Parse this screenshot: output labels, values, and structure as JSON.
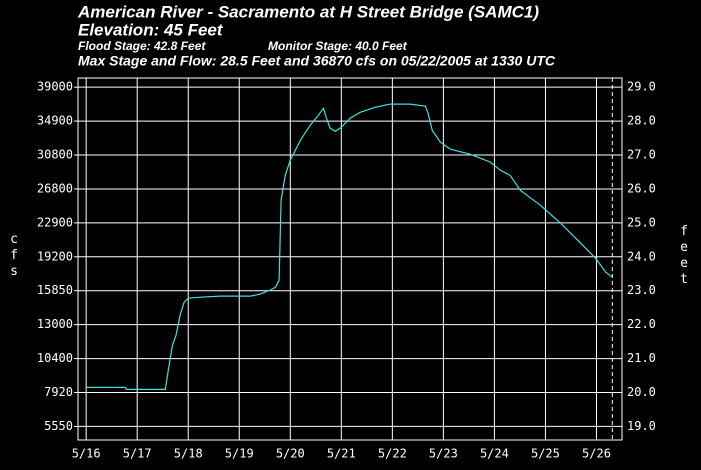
{
  "chart_data": {
    "type": "line",
    "title": "American River - Sacramento at H Street Bridge (SAMC1)",
    "subtitle": "Elevation: 45 Feet",
    "flood_stage": {
      "text": "Flood Stage: 42.8 Feet",
      "color": "#ff2020"
    },
    "monitor_stage": {
      "text": "Monitor Stage: 40.0 Feet",
      "color": "#ff9a20"
    },
    "max_note": "Max Stage and Flow: 28.5 Feet and 36870 cfs on 05/22/2005 at 1330 UTC",
    "ylabel": "cfs",
    "y2label": "feet",
    "grid": true,
    "xlim": [
      -0.16,
      10.5
    ],
    "xticks": [
      {
        "value": 0,
        "label": "5/16"
      },
      {
        "value": 1,
        "label": "5/17"
      },
      {
        "value": 2,
        "label": "5/18"
      },
      {
        "value": 3,
        "label": "5/19"
      },
      {
        "value": 4,
        "label": "5/20"
      },
      {
        "value": 5,
        "label": "5/21"
      },
      {
        "value": 6,
        "label": "5/22"
      },
      {
        "value": 7,
        "label": "5/23"
      },
      {
        "value": 8,
        "label": "5/24"
      },
      {
        "value": 9,
        "label": "5/25"
      },
      {
        "value": 10,
        "label": "5/26"
      }
    ],
    "yticks": [
      39000,
      34900,
      30800,
      26800,
      22900,
      19200,
      15850,
      13000,
      10400,
      7920,
      5550
    ],
    "y2lim": [
      18.6,
      29.27
    ],
    "y2ticks": [
      {
        "value": 29,
        "label": "29.0"
      },
      {
        "value": 28,
        "label": "28.0"
      },
      {
        "value": 27,
        "label": "27.0"
      },
      {
        "value": 26,
        "label": "26.0"
      },
      {
        "value": 25,
        "label": "25.0"
      },
      {
        "value": 24,
        "label": "24.0"
      },
      {
        "value": 23,
        "label": "23.0"
      },
      {
        "value": 22,
        "label": "22.0"
      },
      {
        "value": 21,
        "label": "21.0"
      },
      {
        "value": 20,
        "label": "20.0"
      },
      {
        "value": 19,
        "label": "19.0"
      }
    ],
    "current_time_x": 10.31,
    "series": [
      {
        "color": "#40e0e0",
        "axis": "y2",
        "x": [
          0,
          0.76,
          0.8,
          1.55,
          1.61,
          1.69,
          1.76,
          1.84,
          1.92,
          2.0,
          2.24,
          2.63,
          3.22,
          3.41,
          3.61,
          3.71,
          3.78,
          3.82,
          3.9,
          4.0,
          4.2,
          4.39,
          4.55,
          4.65,
          4.69,
          4.78,
          4.88,
          4.98,
          5.18,
          5.37,
          5.67,
          5.96,
          6.35,
          6.65,
          6.71,
          6.78,
          6.94,
          7.14,
          7.53,
          7.92,
          8.12,
          8.31,
          8.51,
          8.9,
          9.29,
          9.69,
          9.98,
          10.18,
          10.31
        ],
        "values": [
          20.15,
          20.15,
          20.09,
          20.09,
          20.66,
          21.39,
          21.68,
          22.28,
          22.66,
          22.78,
          22.81,
          22.84,
          22.84,
          22.9,
          23.02,
          23.1,
          23.31,
          25.67,
          26.4,
          26.85,
          27.44,
          27.88,
          28.17,
          28.38,
          28.17,
          27.79,
          27.7,
          27.79,
          28.09,
          28.26,
          28.41,
          28.5,
          28.5,
          28.44,
          28.17,
          27.73,
          27.38,
          27.17,
          27.02,
          26.79,
          26.55,
          26.4,
          25.96,
          25.52,
          25.0,
          24.4,
          23.96,
          23.55,
          23.4
        ]
      }
    ]
  }
}
